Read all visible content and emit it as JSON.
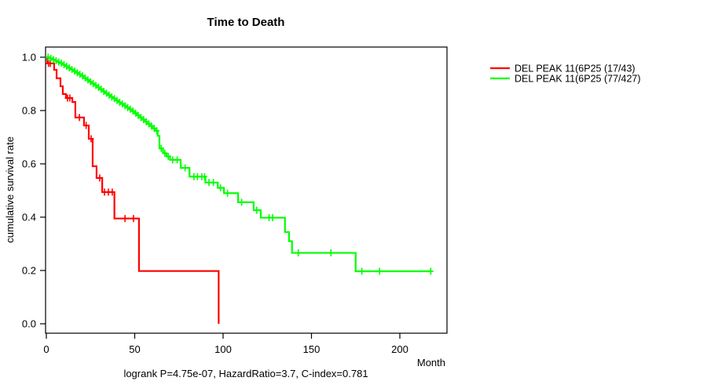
{
  "title": "Time to Death",
  "x_axis": {
    "label": "Month",
    "ticks": [
      "0",
      "50",
      "100",
      "150",
      "200"
    ],
    "tick_values": [
      0,
      50,
      100,
      150,
      200
    ]
  },
  "y_axis": {
    "label": "cumulative survival rate",
    "ticks": [
      "0.0",
      "0.2",
      "0.4",
      "0.6",
      "0.8",
      "1.0"
    ],
    "tick_values": [
      0,
      0.2,
      0.4,
      0.6,
      0.8,
      1.0
    ]
  },
  "annotation": "logrank P=4.75e-07, HazardRatio=3.7, C-index=0.781",
  "legend": [
    {
      "label": "DEL PEAK 11(6P25 (17/43)",
      "color": "#ff0000"
    },
    {
      "label": "DEL PEAK 11(6P25 (77/427)",
      "color": "#00ff00"
    }
  ],
  "colors": {
    "group1": "#ff0000",
    "group2": "#00ff00",
    "frame": "#000000",
    "text": "#000000",
    "background": "#ffffff"
  },
  "chart_data": {
    "type": "line",
    "subtype": "kaplan-meier-step",
    "title": "Time to Death",
    "xlabel": "Month",
    "ylabel": "cumulative survival rate",
    "xlim": [
      0,
      227
    ],
    "ylim": [
      0.0,
      1.0
    ],
    "grid": false,
    "legend_position": "right-outside",
    "series": [
      {
        "name": "DEL PEAK 11(6P25 (17/43)",
        "color": "#ff0000",
        "end_time": 97.5,
        "steps": [
          [
            0,
            1.0
          ],
          [
            0.6,
            0.977
          ],
          [
            4.4,
            0.953
          ],
          [
            5.8,
            0.921
          ],
          [
            8,
            0.891
          ],
          [
            9.3,
            0.862
          ],
          [
            11.1,
            0.847
          ],
          [
            14.7,
            0.832
          ],
          [
            16.4,
            0.774
          ],
          [
            21.3,
            0.744
          ],
          [
            24,
            0.694
          ],
          [
            26.2,
            0.591
          ],
          [
            28.4,
            0.547
          ],
          [
            31.6,
            0.494
          ],
          [
            38.5,
            0.395
          ],
          [
            52.4,
            0.198
          ],
          [
            97.5,
            0.0
          ]
        ],
        "censor_times": [
          1.2,
          2.2,
          12,
          13.3,
          18.7,
          22.5,
          25.3,
          30.2,
          32.9,
          35.1,
          37.3,
          44.5,
          49.3
        ]
      },
      {
        "name": "DEL PEAK 11(6P25 (77/427)",
        "color": "#00ff00",
        "end_time": 218,
        "steps": [
          [
            0,
            1.0
          ],
          [
            1.5,
            0.996
          ],
          [
            3,
            0.991
          ],
          [
            4.5,
            0.987
          ],
          [
            6,
            0.982
          ],
          [
            7.5,
            0.978
          ],
          [
            9,
            0.972
          ],
          [
            10.5,
            0.966
          ],
          [
            12,
            0.96
          ],
          [
            13.5,
            0.954
          ],
          [
            15,
            0.948
          ],
          [
            16.5,
            0.942
          ],
          [
            18,
            0.936
          ],
          [
            19.5,
            0.93
          ],
          [
            21,
            0.922
          ],
          [
            22.5,
            0.915
          ],
          [
            24,
            0.908
          ],
          [
            25.5,
            0.901
          ],
          [
            27,
            0.894
          ],
          [
            28.5,
            0.887
          ],
          [
            30,
            0.88
          ],
          [
            31.5,
            0.872
          ],
          [
            33,
            0.865
          ],
          [
            34.5,
            0.858
          ],
          [
            36,
            0.851
          ],
          [
            37.5,
            0.845
          ],
          [
            39,
            0.838
          ],
          [
            40.5,
            0.831
          ],
          [
            42,
            0.825
          ],
          [
            43.5,
            0.818
          ],
          [
            45,
            0.811
          ],
          [
            46.5,
            0.805
          ],
          [
            48,
            0.798
          ],
          [
            49.5,
            0.79
          ],
          [
            51,
            0.782
          ],
          [
            52.5,
            0.774
          ],
          [
            54,
            0.766
          ],
          [
            55.5,
            0.758
          ],
          [
            57,
            0.75
          ],
          [
            58.5,
            0.742
          ],
          [
            60,
            0.733
          ],
          [
            61.5,
            0.724
          ],
          [
            63,
            0.705
          ],
          [
            64,
            0.658
          ],
          [
            66,
            0.64
          ],
          [
            68,
            0.628
          ],
          [
            70,
            0.615
          ],
          [
            76,
            0.585
          ],
          [
            81,
            0.552
          ],
          [
            90,
            0.53
          ],
          [
            97,
            0.51
          ],
          [
            100.5,
            0.49
          ],
          [
            108.5,
            0.456
          ],
          [
            117.3,
            0.426
          ],
          [
            121.3,
            0.398
          ],
          [
            135,
            0.344
          ],
          [
            137.3,
            0.31
          ],
          [
            139,
            0.266
          ],
          [
            175,
            0.197
          ]
        ],
        "censor_times": [
          1,
          2.5,
          4,
          5.5,
          7,
          8.5,
          10,
          11.5,
          13,
          14.5,
          16,
          17.5,
          19,
          20.5,
          22,
          23.5,
          25,
          26.5,
          28,
          29.5,
          31,
          32.5,
          34,
          35.5,
          37,
          38.5,
          40,
          41.5,
          43,
          44.5,
          46,
          47.5,
          49,
          50.5,
          52,
          53.5,
          55,
          56.5,
          58,
          59.5,
          61,
          62.5,
          65,
          67,
          69,
          71.5,
          74,
          78.5,
          83.5,
          85.5,
          88,
          89.5,
          92,
          94.5,
          98.5,
          102.5,
          110.5,
          119,
          126,
          128,
          142.5,
          161,
          178.5,
          188.5,
          217.5
        ]
      }
    ]
  }
}
